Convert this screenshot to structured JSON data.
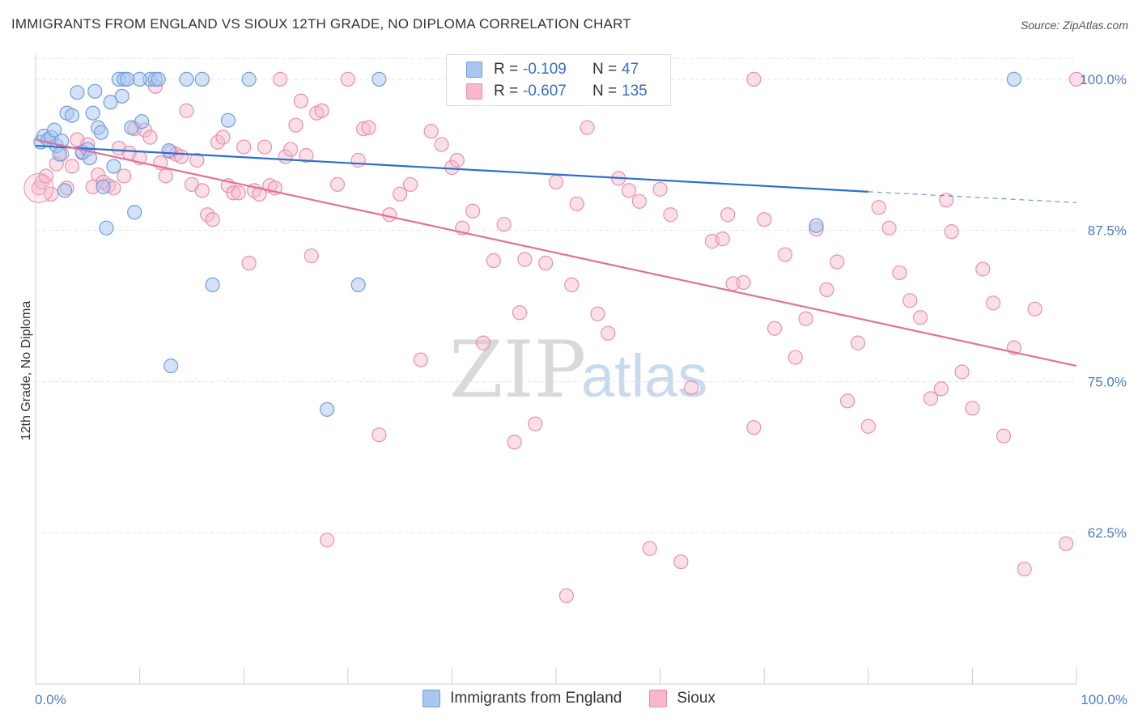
{
  "title": "IMMIGRANTS FROM ENGLAND VS SIOUX 12TH GRADE, NO DIPLOMA CORRELATION CHART",
  "source": "Source: ZipAtlas.com",
  "watermark": {
    "zip": "ZIP",
    "atlas": "atlas"
  },
  "legend": {
    "r_label": "R =",
    "n_label": "N =",
    "england": {
      "r": "-0.109",
      "n": "47"
    },
    "sioux": {
      "r": "-0.607",
      "n": "135"
    }
  },
  "colors": {
    "england_fill": "#a9c6ef",
    "england_stroke": "#6e9fdc",
    "england_line": "#2a6fcc",
    "sioux_fill": "#f7b8cb",
    "sioux_stroke": "#e890ab",
    "sioux_line": "#e0719a",
    "tick_text": "#4a7cc7",
    "grid": "#e3e3e3"
  },
  "chart_data": {
    "type": "scatter",
    "xlabel": "",
    "ylabel": "12th Grade, No Diploma",
    "xlim": [
      0,
      100
    ],
    "ylim": [
      50,
      102
    ],
    "x_tick_labels": [
      "0.0%",
      "100.0%"
    ],
    "y_ticks": [
      62.5,
      75.0,
      87.5,
      100.0
    ],
    "y_tick_labels": [
      "62.5%",
      "75.0%",
      "87.5%",
      "100.0%"
    ],
    "grid": true,
    "legend_position": "top-center and bottom",
    "series": [
      {
        "name": "Immigrants from England",
        "trend": {
          "x0": 0,
          "y0": 94.5,
          "x1": 80,
          "y1": 90.7,
          "dashed_to_x": 100,
          "dashed_to_y": 89.8
        },
        "points": [
          [
            0.5,
            94.8
          ],
          [
            0.8,
            95.3
          ],
          [
            1.2,
            95.0
          ],
          [
            1.5,
            95.2
          ],
          [
            1.8,
            95.8
          ],
          [
            2.0,
            94.5
          ],
          [
            2.3,
            93.8
          ],
          [
            2.5,
            94.9
          ],
          [
            2.8,
            90.8
          ],
          [
            3.0,
            97.2
          ],
          [
            3.5,
            97.0
          ],
          [
            4.0,
            98.9
          ],
          [
            4.5,
            94.0
          ],
          [
            5.0,
            94.2
          ],
          [
            5.2,
            93.5
          ],
          [
            5.5,
            97.2
          ],
          [
            5.7,
            99.0
          ],
          [
            6.0,
            96.0
          ],
          [
            6.3,
            95.6
          ],
          [
            6.5,
            91.1
          ],
          [
            6.8,
            87.7
          ],
          [
            7.2,
            98.1
          ],
          [
            7.5,
            92.8
          ],
          [
            8.0,
            100.0
          ],
          [
            8.3,
            98.6
          ],
          [
            8.5,
            100.0
          ],
          [
            8.8,
            100.0
          ],
          [
            9.2,
            96.0
          ],
          [
            9.5,
            89.0
          ],
          [
            10.2,
            96.5
          ],
          [
            11.0,
            100.0
          ],
          [
            11.5,
            100.0
          ],
          [
            11.8,
            100.0
          ],
          [
            12.8,
            94.1
          ],
          [
            13.0,
            76.3
          ],
          [
            14.5,
            100.0
          ],
          [
            16.0,
            100.0
          ],
          [
            17.0,
            83.0
          ],
          [
            18.5,
            96.6
          ],
          [
            20.5,
            100.0
          ],
          [
            28.0,
            72.7
          ],
          [
            31.0,
            83.0
          ],
          [
            33.0,
            100.0
          ],
          [
            56.0,
            100.0
          ],
          [
            75.0,
            87.9
          ],
          [
            94.0,
            100.0
          ],
          [
            10.0,
            100.0
          ]
        ]
      },
      {
        "name": "Sioux",
        "trend": {
          "x0": 0,
          "y0": 95.0,
          "x1": 100,
          "y1": 76.3
        },
        "points": [
          [
            0.3,
            91.0
          ],
          [
            0.6,
            91.5
          ],
          [
            1.0,
            92.0
          ],
          [
            1.5,
            90.5
          ],
          [
            2.0,
            93.0
          ],
          [
            2.5,
            93.8
          ],
          [
            3.0,
            91.0
          ],
          [
            3.5,
            92.8
          ],
          [
            4.0,
            95.0
          ],
          [
            4.5,
            93.9
          ],
          [
            5.0,
            94.6
          ],
          [
            5.5,
            91.1
          ],
          [
            6.0,
            92.1
          ],
          [
            6.5,
            91.5
          ],
          [
            7.0,
            91.2
          ],
          [
            7.5,
            91.0
          ],
          [
            8.0,
            94.3
          ],
          [
            8.5,
            92.0
          ],
          [
            9.0,
            93.9
          ],
          [
            9.5,
            95.9
          ],
          [
            10.0,
            93.5
          ],
          [
            10.5,
            95.8
          ],
          [
            11.0,
            95.2
          ],
          [
            11.5,
            99.4
          ],
          [
            12.0,
            93.1
          ],
          [
            12.5,
            92.0
          ],
          [
            13.0,
            94.0
          ],
          [
            13.5,
            93.8
          ],
          [
            14.0,
            93.6
          ],
          [
            14.5,
            97.4
          ],
          [
            15.0,
            91.3
          ],
          [
            15.5,
            93.3
          ],
          [
            16.0,
            90.8
          ],
          [
            16.5,
            88.8
          ],
          [
            17.0,
            88.4
          ],
          [
            17.5,
            94.8
          ],
          [
            18.0,
            95.2
          ],
          [
            18.5,
            91.2
          ],
          [
            19.0,
            90.6
          ],
          [
            19.5,
            90.6
          ],
          [
            20.0,
            94.4
          ],
          [
            20.5,
            84.8
          ],
          [
            21.0,
            90.8
          ],
          [
            21.5,
            90.5
          ],
          [
            22.0,
            94.4
          ],
          [
            22.5,
            91.2
          ],
          [
            23.0,
            91.0
          ],
          [
            23.5,
            100.0
          ],
          [
            24.0,
            93.6
          ],
          [
            24.5,
            94.2
          ],
          [
            25.0,
            96.2
          ],
          [
            25.5,
            98.2
          ],
          [
            26.0,
            93.7
          ],
          [
            26.5,
            85.4
          ],
          [
            27.0,
            97.2
          ],
          [
            27.5,
            97.4
          ],
          [
            28.0,
            61.9
          ],
          [
            29.0,
            91.3
          ],
          [
            30.0,
            100.0
          ],
          [
            31.0,
            93.3
          ],
          [
            31.5,
            95.9
          ],
          [
            32.0,
            96.0
          ],
          [
            33.0,
            70.6
          ],
          [
            34.0,
            88.8
          ],
          [
            35.0,
            90.5
          ],
          [
            36.0,
            91.3
          ],
          [
            37.0,
            76.8
          ],
          [
            38.0,
            95.7
          ],
          [
            39.0,
            94.6
          ],
          [
            40.0,
            92.7
          ],
          [
            40.5,
            93.3
          ],
          [
            41.0,
            87.7
          ],
          [
            42.0,
            89.1
          ],
          [
            43.0,
            78.2
          ],
          [
            44.0,
            85.0
          ],
          [
            45.0,
            88.0
          ],
          [
            46.0,
            70.0
          ],
          [
            46.5,
            80.7
          ],
          [
            47.0,
            85.1
          ],
          [
            48.0,
            71.5
          ],
          [
            49.0,
            84.8
          ],
          [
            50.0,
            91.5
          ],
          [
            51.0,
            57.3
          ],
          [
            51.5,
            83.0
          ],
          [
            52.0,
            89.7
          ],
          [
            53.0,
            96.0
          ],
          [
            54.0,
            80.6
          ],
          [
            55.0,
            79.0
          ],
          [
            56.0,
            91.8
          ],
          [
            57.0,
            90.8
          ],
          [
            58.0,
            89.9
          ],
          [
            59.0,
            61.2
          ],
          [
            60.0,
            90.9
          ],
          [
            61.0,
            88.8
          ],
          [
            62.0,
            60.1
          ],
          [
            63.0,
            74.5
          ],
          [
            65.0,
            86.6
          ],
          [
            66.0,
            86.8
          ],
          [
            66.5,
            88.8
          ],
          [
            67.0,
            83.1
          ],
          [
            68.0,
            83.2
          ],
          [
            69.0,
            71.2
          ],
          [
            70.0,
            88.4
          ],
          [
            71.0,
            79.4
          ],
          [
            72.0,
            85.5
          ],
          [
            73.0,
            77.0
          ],
          [
            74.0,
            80.2
          ],
          [
            75.0,
            87.6
          ],
          [
            76.0,
            82.6
          ],
          [
            77.0,
            84.9
          ],
          [
            78.0,
            73.4
          ],
          [
            79.0,
            78.2
          ],
          [
            80.0,
            71.3
          ],
          [
            81.0,
            89.4
          ],
          [
            82.0,
            87.7
          ],
          [
            83.0,
            84.0
          ],
          [
            84.0,
            81.7
          ],
          [
            85.0,
            80.3
          ],
          [
            86.0,
            73.6
          ],
          [
            87.0,
            74.4
          ],
          [
            87.5,
            90.0
          ],
          [
            88.0,
            87.4
          ],
          [
            89.0,
            75.8
          ],
          [
            90.0,
            72.8
          ],
          [
            91.0,
            84.3
          ],
          [
            92.0,
            81.5
          ],
          [
            93.0,
            70.5
          ],
          [
            94.0,
            77.8
          ],
          [
            95.0,
            59.5
          ],
          [
            96.0,
            81.0
          ],
          [
            99.0,
            61.6
          ],
          [
            69.0,
            100.0
          ],
          [
            100.0,
            100.0
          ]
        ]
      }
    ]
  }
}
